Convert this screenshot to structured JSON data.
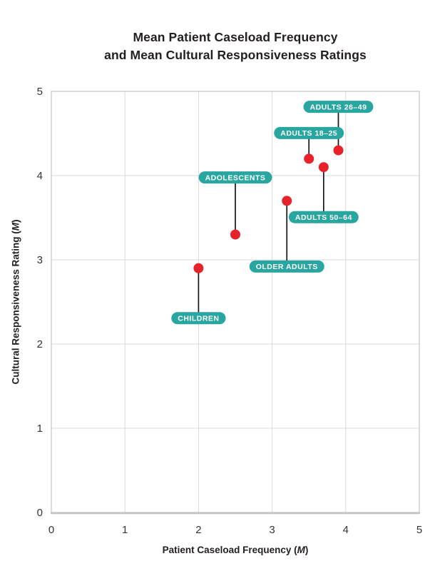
{
  "header": {
    "title_line1": "Mean Patient Caseload Frequency",
    "title_line2": "and Mean Cultural Responsiveness Ratings"
  },
  "axes": {
    "x_title_prefix": "Patient Caseload Frequency (",
    "y_title_prefix": "Cultural Responsiveness Rating (",
    "m_label": "M",
    "title_suffix": ")"
  },
  "chart_data": {
    "type": "scatter",
    "title": "Mean Patient Caseload Frequency and Mean Cultural Responsiveness Ratings",
    "xlabel": "Patient Caseload Frequency (M)",
    "ylabel": "Cultural Responsiveness Rating (M)",
    "xlim": [
      0,
      5
    ],
    "ylim": [
      0,
      5
    ],
    "xticks": [
      0,
      1,
      2,
      3,
      4,
      5
    ],
    "yticks": [
      0,
      1,
      2,
      3,
      4,
      5
    ],
    "grid": true,
    "legend": "none",
    "colors": {
      "point": "#e8222a",
      "label_bg": "#2aa6a0",
      "label_text": "#ffffff",
      "connector": "#161616",
      "grid": "#dadada",
      "border": "#c9c9c9",
      "axis_line": "#c4c4c4",
      "tick_text": "#33343c",
      "title_text": "#231f20"
    },
    "points": [
      {
        "label": "CHILDREN",
        "x": 2.0,
        "y": 2.9,
        "label_side": "below",
        "label_dy": 70
      },
      {
        "label": "ADOLESCENTS",
        "x": 2.5,
        "y": 3.3,
        "label_side": "above",
        "label_dy": -80
      },
      {
        "label": "OLDER ADULTS",
        "x": 3.2,
        "y": 3.7,
        "label_side": "below",
        "label_dy": 92
      },
      {
        "label": "ADULTS 18–25",
        "x": 3.5,
        "y": 4.2,
        "label_side": "above",
        "label_dy": -36
      },
      {
        "label": "ADULTS 50–64",
        "x": 3.7,
        "y": 4.1,
        "label_side": "below",
        "label_dy": 70
      },
      {
        "label": "ADULTS 26–49",
        "x": 3.9,
        "y": 4.3,
        "label_side": "above",
        "label_dy": -61
      }
    ]
  }
}
